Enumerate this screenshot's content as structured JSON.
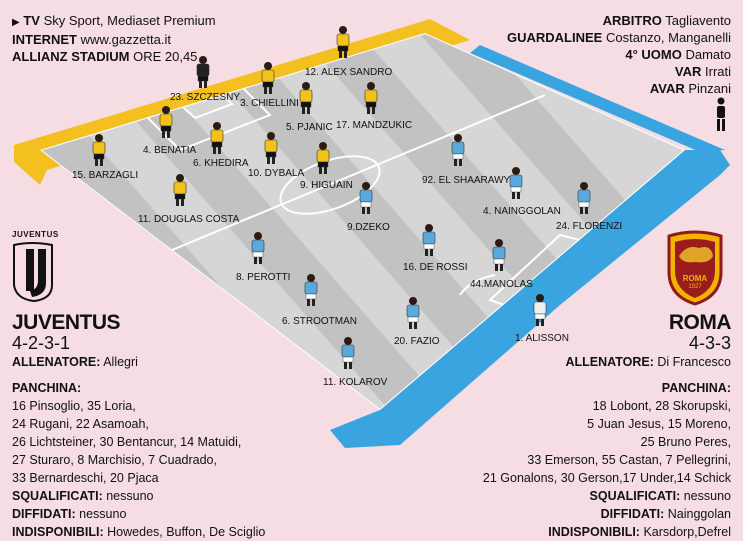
{
  "broadcast": {
    "tv_label": "TV",
    "tv_value": "Sky Sport, Mediaset Premium",
    "internet_label": "INTERNET",
    "internet_value": "www.gazzetta.it",
    "venue_label": "ALLIANZ STADIUM",
    "venue_value": "ORE 20,45"
  },
  "officials": {
    "referee_label": "ARBITRO",
    "referee_value": "Tagliavento",
    "linesmen_label": "GUARDALINEE",
    "linesmen_value": "Costanzo, Manganelli",
    "fourth_label": "4° UOMO",
    "fourth_value": "Damato",
    "var_label": "VAR",
    "var_value": "Irrati",
    "avar_label": "AVAR",
    "avar_value": "Pinzani"
  },
  "home": {
    "logo_text": "JUVENTUS",
    "name": "JUVENTUS",
    "formation": "4-2-3-1",
    "coach_label": "ALLENATORE:",
    "coach": "Allegri",
    "bench_label": "PANCHINA:",
    "bench_lines": [
      "16 Pinsoglio, 35 Loria,",
      "24 Rugani, 22 Asamoah,",
      "26 Lichtsteiner, 30 Bentancur, 14 Matuidi,",
      "27 Sturaro, 8 Marchisio, 7 Cuadrado,",
      "33 Bernardeschi, 20 Pjaca"
    ],
    "suspended_label": "SQUALIFICATI:",
    "suspended": "nessuno",
    "warned_label": "DIFFIDATI:",
    "warned": "nessuno",
    "unavailable_label": "INDISPONIBILI:",
    "unavailable": "Howedes, Buffon, De Sciglio",
    "players": [
      {
        "label": "23. SZCZESNY"
      },
      {
        "label": "12. ALEX SANDRO"
      },
      {
        "label": "3. CHIELLINI"
      },
      {
        "label": "4. BENATIA"
      },
      {
        "label": "15. BARZAGLI"
      },
      {
        "label": "5. PJANIC"
      },
      {
        "label": "6. KHEDIRA"
      },
      {
        "label": "17. MANDZUKIC"
      },
      {
        "label": "10. DYBALA"
      },
      {
        "label": "11. DOUGLAS COSTA"
      },
      {
        "label": "9. HIGUAIN"
      }
    ]
  },
  "away": {
    "logo_text": "ROMA",
    "logo_year": "1927",
    "name": "ROMA",
    "formation": "4-3-3",
    "coach_label": "ALLENATORE:",
    "coach": "Di Francesco",
    "bench_label": "PANCHINA:",
    "bench_lines": [
      "18 Lobont, 28 Skorupski,",
      "5 Juan Jesus, 15 Moreno,",
      "25 Bruno Peres,",
      "33 Emerson, 55 Castan, 7 Pellegrini,",
      "21 Gonalons, 30 Gerson,17 Under,14 Schick"
    ],
    "suspended_label": "SQUALIFICATI:",
    "suspended": "nessuno",
    "warned_label": "DIFFIDATI:",
    "warned": "Nainggolan",
    "unavailable_label": "INDISPONIBILI:",
    "unavailable": "Karsdorp,Defrel",
    "players": [
      {
        "label": "92. EL SHAARAWY"
      },
      {
        "label": "4. NAINGGOLAN"
      },
      {
        "label": "24. FLORENZI"
      },
      {
        "label": "9.DZEKO"
      },
      {
        "label": "8. PEROTTI"
      },
      {
        "label": "16. DE ROSSI"
      },
      {
        "label": "44.MANOLAS"
      },
      {
        "label": "6. STROOTMAN"
      },
      {
        "label": "20. FAZIO"
      },
      {
        "label": "1. ALISSON"
      },
      {
        "label": "11. KOLAROV"
      }
    ]
  },
  "colors": {
    "juve_shirt": "#f2c21b",
    "roma_shirt": "#5aa9dd",
    "field_gray": "#c9c9c9",
    "field_light": "#dcdcdc",
    "yellow_border": "#f4c020",
    "blue_border": "#39a4e0",
    "background": "#f6dde3"
  }
}
